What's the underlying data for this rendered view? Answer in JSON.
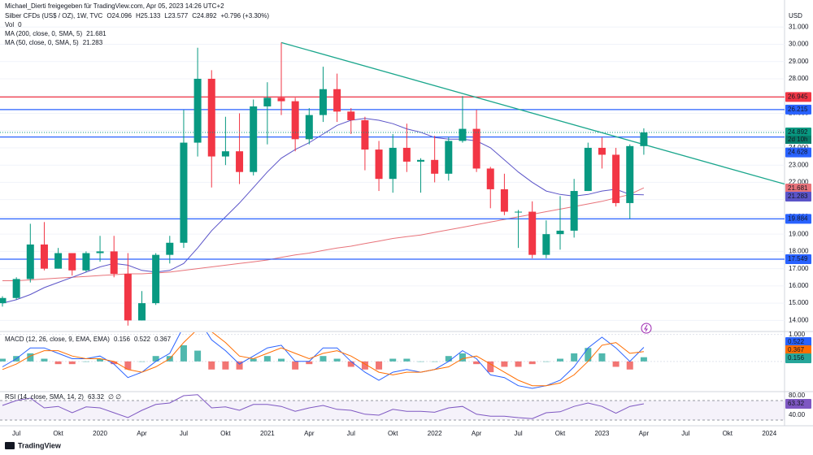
{
  "chart_data": [
    {
      "type": "candlestick",
      "attribution": "Michael_Dierti freigegeben für TradingView.com, Apr 05, 2023 14:26 UTC+2",
      "title": "Silber CFDs (US$ / OZ), 1W, TVC",
      "ohlc": [
        "O24.096",
        "H25.133",
        "L23.577",
        "C24.892",
        "+0.796 (+3.30%)"
      ],
      "volume": "Vol",
      "volume_value": 0,
      "currency": "USD",
      "categories": [
        null,
        "Jul",
        null,
        null,
        "Okt",
        null,
        null,
        "2020",
        null,
        null,
        "Apr",
        null,
        null,
        "Jul",
        null,
        null,
        "Okt",
        null,
        null,
        "2021",
        null,
        null,
        "Apr",
        null,
        null,
        "Jul",
        null,
        null,
        "Okt",
        null,
        null,
        "2022",
        null,
        null,
        "Apr",
        null,
        null,
        "Jul",
        null,
        null,
        "Okt",
        null,
        null,
        "2023",
        null,
        null,
        "Apr",
        null,
        null,
        "Jul",
        null,
        null,
        "Okt",
        null,
        null,
        "2024"
      ],
      "open": [
        15.0,
        15.3,
        16.4,
        18.4,
        17.0,
        17.9,
        16.9,
        17.9,
        18.0,
        16.7,
        14.0,
        15.0,
        17.8,
        18.5,
        24.3,
        28.0,
        23.5,
        23.8,
        22.6,
        26.4,
        26.9,
        26.7,
        24.5,
        25.9,
        27.4,
        26.1,
        25.6,
        23.9,
        22.2,
        24.0,
        23.2,
        23.3,
        22.5,
        24.4,
        25.1,
        22.8,
        21.6,
        20.3,
        20.3,
        17.8,
        19.0,
        19.2,
        21.5,
        24.0,
        23.6,
        20.8,
        24.1,
        null,
        null,
        null,
        null,
        null,
        null,
        null,
        null,
        null
      ],
      "high": [
        15.4,
        16.5,
        19.6,
        19.7,
        18.2,
        17.9,
        18.0,
        18.9,
        18.9,
        17.9,
        15.7,
        17.9,
        18.9,
        26.2,
        29.8,
        28.5,
        25.8,
        26.0,
        26.8,
        27.8,
        30.1,
        26.9,
        26.3,
        28.7,
        28.3,
        26.3,
        25.8,
        24.4,
        24.8,
        25.4,
        23.4,
        24.7,
        24.6,
        27.0,
        26.2,
        22.9,
        22.5,
        20.4,
        20.9,
        19.8,
        21.2,
        22.2,
        24.3,
        24.6,
        24.0,
        24.2,
        25.13,
        null,
        null,
        null,
        null,
        null,
        null,
        null,
        null,
        null
      ],
      "low": [
        14.8,
        15.2,
        16.2,
        16.9,
        17.0,
        16.6,
        16.8,
        17.4,
        16.5,
        13.7,
        14.0,
        14.9,
        17.3,
        18.2,
        23.5,
        21.7,
        23.0,
        21.9,
        22.4,
        24.2,
        25.9,
        23.8,
        24.2,
        25.5,
        25.5,
        24.8,
        22.7,
        21.5,
        21.4,
        22.6,
        21.4,
        22.0,
        22.1,
        24.3,
        22.6,
        20.5,
        20.1,
        18.2,
        17.6,
        17.6,
        18.1,
        18.8,
        21.5,
        22.8,
        20.6,
        19.9,
        23.6,
        null,
        null,
        null,
        null,
        null,
        null,
        null,
        null,
        null
      ],
      "close": [
        15.3,
        16.4,
        18.4,
        17.0,
        17.9,
        16.9,
        17.9,
        18.0,
        16.7,
        14.0,
        15.0,
        17.8,
        18.5,
        24.3,
        28.0,
        23.5,
        23.8,
        22.6,
        26.4,
        26.9,
        26.7,
        24.5,
        25.9,
        27.4,
        26.1,
        25.6,
        23.9,
        22.2,
        24.0,
        23.2,
        23.3,
        22.5,
        24.4,
        25.1,
        22.8,
        21.6,
        20.3,
        20.3,
        17.8,
        19.0,
        19.2,
        21.5,
        24.0,
        23.6,
        20.8,
        24.1,
        24.892,
        null,
        null,
        null,
        null,
        null,
        null,
        null,
        null,
        null
      ],
      "up_color": "#089981",
      "down_color": "#f23645",
      "ylim": [
        13.5,
        32
      ],
      "yticks": [
        {
          "value": 14,
          "label": "14.000"
        },
        {
          "value": 15,
          "label": "15.000"
        },
        {
          "value": 16,
          "label": "16.000"
        },
        {
          "value": 17,
          "label": "17.000"
        },
        {
          "value": 18,
          "label": "18.000"
        },
        {
          "value": 19,
          "label": "19.000"
        },
        {
          "value": 20,
          "label": "20.000"
        },
        {
          "value": 21,
          "label": "21.000"
        },
        {
          "value": 22,
          "label": "22.000"
        },
        {
          "value": 23,
          "label": "23.000"
        },
        {
          "value": 24,
          "label": "24.000"
        },
        {
          "value": 25,
          "label": "25.000"
        },
        {
          "value": 26,
          "label": "26.000"
        },
        {
          "value": 27,
          "label": "27.000"
        },
        {
          "value": 28,
          "label": "28.000"
        },
        {
          "value": 29,
          "label": "29.000"
        },
        {
          "value": 30,
          "label": "30.000"
        },
        {
          "value": 31,
          "label": "31.000"
        }
      ],
      "moving_averages": [
        {
          "name": "MA (200, close, 0, SMA, 5)",
          "color": "#e8737a",
          "last": 21.681,
          "values": [
            16.3,
            16.3,
            16.35,
            16.4,
            16.45,
            16.5,
            16.55,
            16.6,
            16.65,
            16.7,
            16.7,
            16.75,
            16.8,
            16.9,
            17.0,
            17.1,
            17.2,
            17.3,
            17.4,
            17.5,
            17.65,
            17.8,
            17.9,
            18.05,
            18.2,
            18.3,
            18.45,
            18.6,
            18.75,
            18.85,
            18.95,
            19.1,
            19.25,
            19.4,
            19.55,
            19.7,
            19.85,
            20.0,
            20.15,
            20.3,
            20.45,
            20.6,
            20.75,
            20.9,
            21.1,
            21.3,
            21.681,
            null,
            null,
            null,
            null,
            null,
            null,
            null,
            null,
            null
          ]
        },
        {
          "name": "MA (50, close, 0, SMA, 5)",
          "color": "#5b54c8",
          "last": 21.283,
          "values": [
            15.0,
            15.2,
            15.5,
            15.9,
            16.2,
            16.5,
            16.8,
            17.1,
            17.3,
            17.2,
            16.9,
            16.8,
            16.9,
            17.3,
            18.2,
            19.2,
            20.0,
            20.8,
            21.7,
            22.6,
            23.4,
            23.9,
            24.3,
            24.8,
            25.3,
            25.6,
            25.7,
            25.6,
            25.4,
            25.1,
            24.9,
            24.6,
            24.5,
            24.5,
            24.4,
            24.0,
            23.3,
            22.6,
            22.0,
            21.5,
            21.3,
            21.2,
            21.3,
            21.5,
            21.6,
            21.3,
            21.283,
            null,
            null,
            null,
            null,
            null,
            null,
            null,
            null,
            null
          ]
        }
      ],
      "levels": [
        {
          "value": 26.945,
          "color": "#f23645"
        },
        {
          "value": 26.215,
          "color": "#2962ff"
        },
        {
          "value": 24.628,
          "color": "#2962ff"
        },
        {
          "value": 19.884,
          "color": "#2962ff"
        },
        {
          "value": 17.549,
          "color": "#2962ff"
        }
      ],
      "last_price": 24.892,
      "countdown": "2d 10h",
      "trendline": {
        "color": "#1aa68c",
        "values": [
          30.1,
          21.9
        ]
      }
    },
    {
      "type": "macd",
      "title": "MACD (12, 26, close, 9, EMA, EMA)",
      "ylim": [
        -1.0,
        1.05
      ],
      "yticks": [
        {
          "value": 1,
          "label": "1.000"
        },
        {
          "value": 0,
          "label": "0.000"
        }
      ],
      "series": [
        {
          "name": "histogram",
          "color": "#26a69a",
          "negative_color": "#ef5350",
          "last": 0.156,
          "values": [
            0.1,
            0.2,
            0.3,
            0.1,
            -0.1,
            -0.1,
            0.0,
            0.1,
            -0.1,
            -0.3,
            0.0,
            0.2,
            0.2,
            0.6,
            0.4,
            -0.3,
            -0.3,
            -0.3,
            0.1,
            0.2,
            0.1,
            -0.3,
            -0.1,
            0.2,
            0.1,
            -0.2,
            -0.3,
            -0.3,
            0.1,
            0.1,
            0.0,
            0.0,
            0.2,
            0.3,
            -0.1,
            -0.4,
            -0.2,
            -0.2,
            -0.1,
            0.0,
            0.1,
            0.3,
            0.5,
            0.3,
            -0.2,
            -0.3,
            0.156,
            null,
            null,
            null,
            null,
            null,
            null,
            null,
            null,
            null
          ]
        },
        {
          "name": "macd",
          "color": "#2962ff",
          "last": 0.522,
          "values": [
            -0.2,
            0.1,
            0.5,
            0.5,
            0.3,
            0.1,
            0.1,
            0.2,
            -0.1,
            -0.6,
            -0.4,
            0.0,
            0.3,
            1.3,
            1.6,
            0.8,
            0.4,
            -0.1,
            0.2,
            0.5,
            0.6,
            0.0,
            0.0,
            0.5,
            0.5,
            0.0,
            -0.4,
            -0.7,
            -0.4,
            -0.3,
            -0.4,
            -0.3,
            0.0,
            0.4,
            0.1,
            -0.5,
            -0.6,
            -0.9,
            -1.0,
            -0.9,
            -0.7,
            -0.2,
            0.5,
            0.9,
            0.5,
            0.0,
            0.522,
            null,
            null,
            null,
            null,
            null,
            null,
            null,
            null,
            null
          ]
        },
        {
          "name": "signal",
          "color": "#ff6d00",
          "last": 0.367,
          "values": [
            -0.3,
            -0.1,
            0.2,
            0.4,
            0.4,
            0.2,
            0.1,
            0.1,
            0.0,
            -0.3,
            -0.4,
            -0.2,
            0.1,
            0.7,
            1.2,
            1.1,
            0.7,
            0.2,
            0.1,
            0.3,
            0.5,
            0.3,
            0.1,
            0.3,
            0.4,
            0.2,
            -0.1,
            -0.4,
            -0.5,
            -0.4,
            -0.4,
            -0.3,
            -0.2,
            0.1,
            0.2,
            -0.1,
            -0.4,
            -0.7,
            -0.9,
            -0.9,
            -0.8,
            -0.5,
            0.0,
            0.6,
            0.7,
            0.3,
            0.367,
            null,
            null,
            null,
            null,
            null,
            null,
            null,
            null,
            null
          ]
        }
      ]
    },
    {
      "type": "rsi",
      "title": "RSI (14, close, SMA, 14, 2)",
      "extra": "∅ ∅",
      "ylim": [
        20,
        85
      ],
      "yticks": [
        {
          "value": 80,
          "label": "80.00"
        },
        {
          "value": 40,
          "label": "40.00"
        }
      ],
      "band": [
        30,
        70
      ],
      "color": "#7e57c2",
      "last": 63.32,
      "values": [
        60,
        70,
        75,
        55,
        58,
        45,
        57,
        55,
        45,
        35,
        50,
        62,
        65,
        80,
        82,
        55,
        57,
        50,
        62,
        62,
        58,
        48,
        55,
        60,
        52,
        50,
        42,
        40,
        52,
        48,
        48,
        46,
        55,
        58,
        42,
        38,
        38,
        35,
        33,
        45,
        47,
        58,
        65,
        58,
        44,
        58,
        63.32,
        null,
        null,
        null,
        null,
        null,
        null,
        null,
        null,
        null
      ]
    }
  ],
  "footer": {
    "brand": "TradingView"
  }
}
